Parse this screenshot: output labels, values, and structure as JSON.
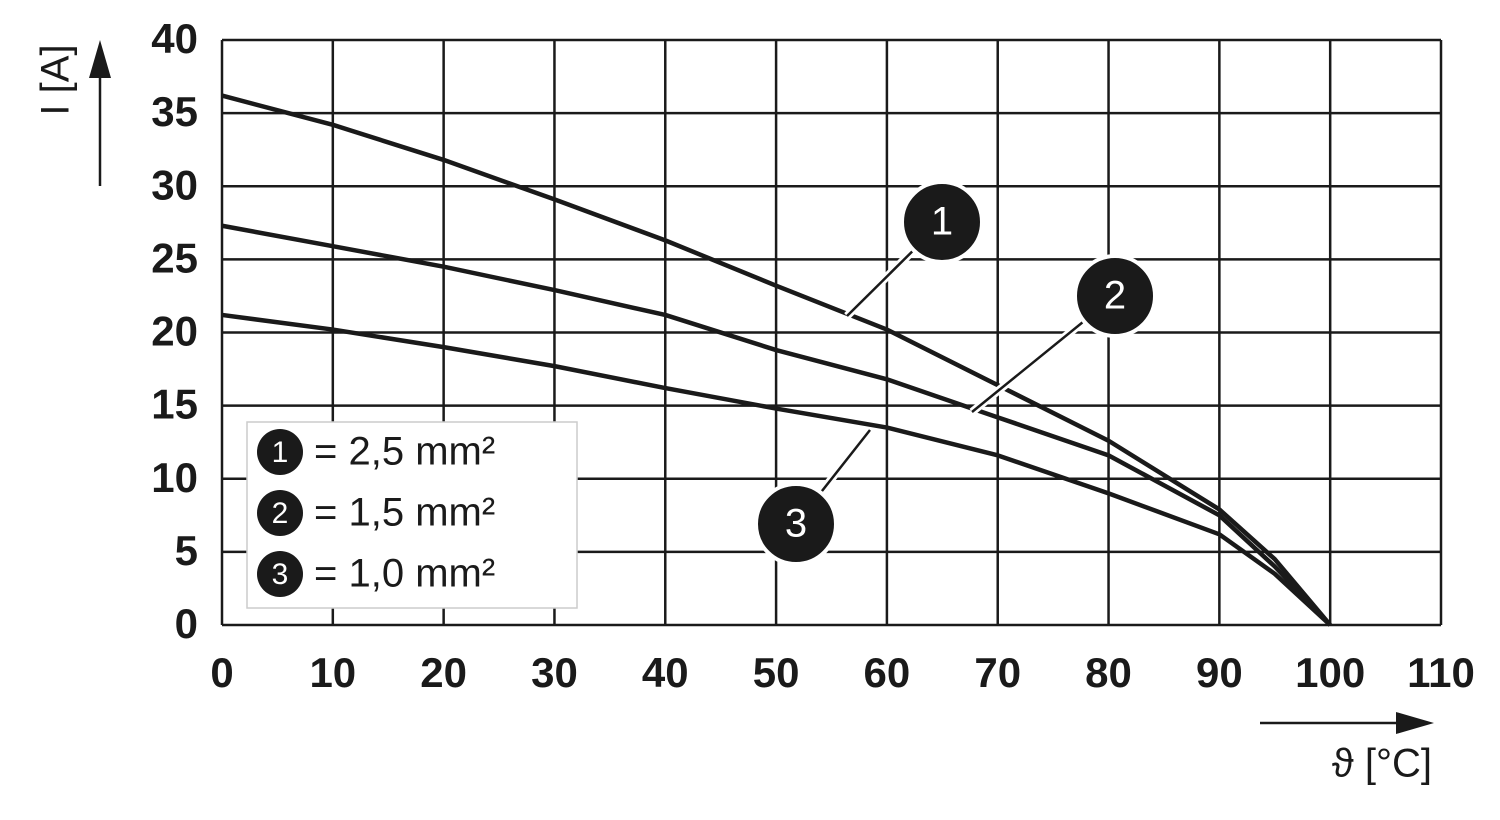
{
  "chart_data": {
    "type": "line",
    "y_label": "I [A]",
    "x_label": "ϑ [°C]",
    "x": [
      0,
      10,
      20,
      30,
      40,
      50,
      60,
      70,
      80,
      90,
      95,
      100
    ],
    "series": [
      {
        "marker": "1",
        "name": "= 2,5 mm²",
        "color": "#1a1a1a",
        "values": [
          36.2,
          34.2,
          31.8,
          29.1,
          26.3,
          23.2,
          20.2,
          16.4,
          12.6,
          7.9,
          4.5,
          0
        ]
      },
      {
        "marker": "2",
        "name": "= 1,5 mm²",
        "color": "#1a1a1a",
        "values": [
          27.3,
          25.9,
          24.5,
          22.9,
          21.2,
          18.8,
          16.8,
          14.2,
          11.6,
          7.5,
          4.0,
          0
        ]
      },
      {
        "marker": "3",
        "name": "= 1,0 mm²",
        "color": "#1a1a1a",
        "values": [
          21.2,
          20.2,
          19.0,
          17.7,
          16.2,
          14.8,
          13.5,
          11.6,
          9.0,
          6.2,
          3.5,
          0
        ]
      }
    ],
    "xlim": [
      0,
      110
    ],
    "ylim": [
      0,
      40
    ],
    "xticks": [
      0,
      10,
      20,
      30,
      40,
      50,
      60,
      70,
      80,
      90,
      100,
      110
    ],
    "yticks": [
      0,
      5,
      10,
      15,
      20,
      25,
      30,
      35,
      40
    ],
    "grid": true
  }
}
